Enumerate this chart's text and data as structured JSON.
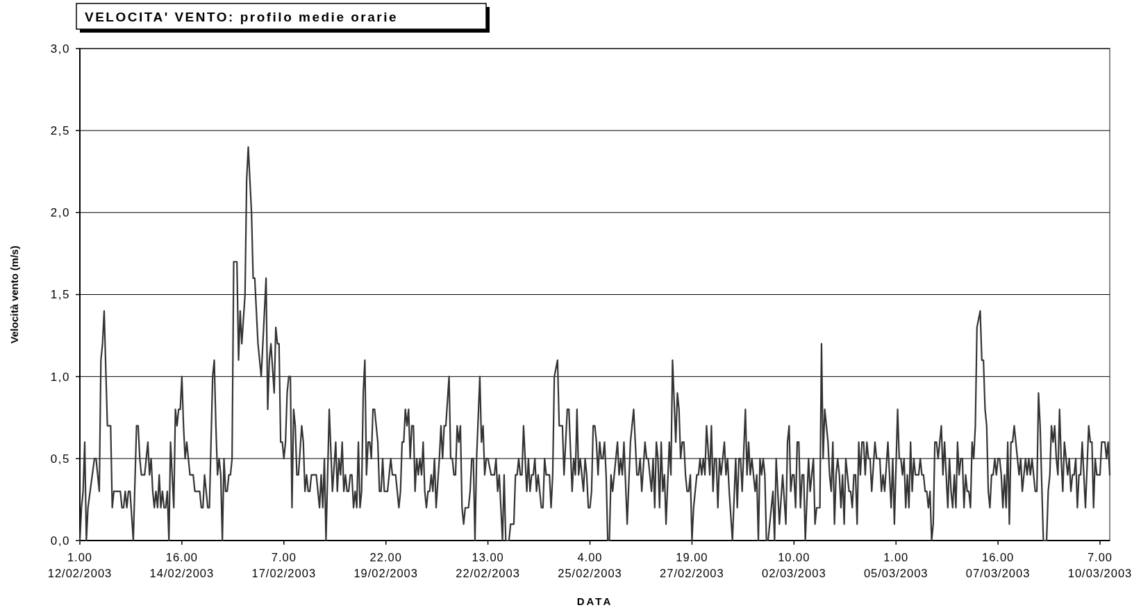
{
  "chart_data": {
    "type": "line",
    "title": "VELOCITA' VENTO: profilo medie orarie",
    "xlabel": "DATA",
    "ylabel": "Velocità vento (m/s)",
    "xlim": [
      "2003-02-12T01:00",
      "2003-03-10T13:00"
    ],
    "xticks": [
      {
        "value": "2003-02-12T01:00",
        "label": "1.00 12/02/2003"
      },
      {
        "value": "2003-02-14T16:00",
        "label": "16.00 14/02/2003"
      },
      {
        "value": "2003-02-17T07:00",
        "label": "7.00 17/02/2003"
      },
      {
        "value": "2003-02-19T22:00",
        "label": "22.00 19/02/2003"
      },
      {
        "value": "2003-02-22T13:00",
        "label": "13.00 22/02/2003"
      },
      {
        "value": "2003-02-25T04:00",
        "label": "4.00 25/02/2003"
      },
      {
        "value": "2003-02-27T19:00",
        "label": "19.00 27/02/2003"
      },
      {
        "value": "2003-03-02T10:00",
        "label": "10.00 02/03/2003"
      },
      {
        "value": "2003-03-05T01:00",
        "label": "1.00 05/03/2003"
      },
      {
        "value": "2003-03-07T16:00",
        "label": "16.00 07/03/2003"
      },
      {
        "value": "2003-03-10T07:00",
        "label": "7.00 10/03/2003"
      }
    ],
    "ylim": [
      0,
      3
    ],
    "yticks": [
      {
        "value": 0,
        "label": "0,0"
      },
      {
        "value": 0.5,
        "label": "0,5"
      },
      {
        "value": 1,
        "label": "1,0"
      },
      {
        "value": 1.5,
        "label": "1,5"
      },
      {
        "value": 2,
        "label": "2,0"
      },
      {
        "value": 2.5,
        "label": "2,5"
      },
      {
        "value": 3,
        "label": "3,0"
      }
    ],
    "grid": "y",
    "marker": "none",
    "line_style": "solid",
    "series": [
      {
        "color": "#333333",
        "x": [
          "2003-02-12T01:00",
          "2003-02-12T02:00",
          "2003-02-12T03:00",
          "2003-02-12T04:00",
          "2003-02-12T05:00",
          "2003-02-12T06:00",
          "2003-02-12T10:00",
          "2003-02-12T11:00",
          "2003-02-12T13:00",
          "2003-02-12T14:00",
          "2003-02-12T15:00",
          "2003-02-12T16:00",
          "2003-02-12T18:00",
          "2003-02-12T20:00",
          "2003-02-12T21:00",
          "2003-02-12T22:00",
          "2003-02-13T02:00",
          "2003-02-13T03:00",
          "2003-02-13T04:00",
          "2003-02-13T05:00",
          "2003-02-13T06:00",
          "2003-02-13T07:00",
          "2003-02-13T08:00",
          "2003-02-13T10:00",
          "2003-02-13T12:00",
          "2003-02-13T13:00",
          "2003-02-13T14:00",
          "2003-02-13T15:00",
          "2003-02-13T17:00",
          "2003-02-13T19:00",
          "2003-02-13T20:00",
          "2003-02-13T21:00",
          "2003-02-13T22:00",
          "2003-02-13T23:00",
          "2003-02-14T00:00",
          "2003-02-14T01:00",
          "2003-02-14T02:00",
          "2003-02-14T03:00",
          "2003-02-14T04:00",
          "2003-02-14T05:00",
          "2003-02-14T06:00",
          "2003-02-14T07:00",
          "2003-02-14T08:00",
          "2003-02-14T09:00",
          "2003-02-14T11:00",
          "2003-02-14T12:00",
          "2003-02-14T13:00",
          "2003-02-14T14:00",
          "2003-02-14T15:00",
          "2003-02-14T16:00",
          "2003-02-14T17:00",
          "2003-02-14T18:00",
          "2003-02-14T19:00",
          "2003-02-14T21:00",
          "2003-02-14T23:00",
          "2003-02-15T00:00",
          "2003-02-15T03:00",
          "2003-02-15T04:00",
          "2003-02-15T05:00",
          "2003-02-15T06:00",
          "2003-02-15T08:00",
          "2003-02-15T09:00",
          "2003-02-15T11:00",
          "2003-02-15T12:00",
          "2003-02-15T13:00",
          "2003-02-15T14:00",
          "2003-02-15T15:00",
          "2003-02-15T16:00",
          "2003-02-15T17:00",
          "2003-02-15T18:00",
          "2003-02-15T19:00",
          "2003-02-15T20:00",
          "2003-02-15T21:00",
          "2003-02-15T22:00",
          "2003-02-15T23:00",
          "2003-02-16T00:00",
          "2003-02-16T02:00",
          "2003-02-16T03:00",
          "2003-02-16T04:00",
          "2003-02-16T05:00",
          "2003-02-16T07:00",
          "2003-02-16T08:00",
          "2003-02-16T09:00",
          "2003-02-16T11:00",
          "2003-02-16T12:00",
          "2003-02-16T13:00",
          "2003-02-16T15:00",
          "2003-02-16T17:00",
          "2003-02-16T18:00",
          "2003-02-16T20:00",
          "2003-02-16T21:00",
          "2003-02-16T22:00",
          "2003-02-16T23:00",
          "2003-02-17T01:00",
          "2003-02-17T02:00",
          "2003-02-17T03:00",
          "2003-02-17T04:00",
          "2003-02-17T05:00",
          "2003-02-17T06:00",
          "2003-02-17T07:00",
          "2003-02-17T08:00",
          "2003-02-17T09:00",
          "2003-02-17T10:00",
          "2003-02-17T11:00",
          "2003-02-17T12:00",
          "2003-02-17T13:00",
          "2003-02-17T14:00",
          "2003-02-17T15:00",
          "2003-02-17T16:00",
          "2003-02-17T18:00",
          "2003-02-17T19:00",
          "2003-02-17T20:00",
          "2003-02-17T21:00",
          "2003-02-17T22:00",
          "2003-02-17T23:00",
          "2003-02-18T00:00",
          "2003-02-18T03:00",
          "2003-02-18T05:00",
          "2003-02-18T06:00",
          "2003-02-18T07:00",
          "2003-02-18T08:00",
          "2003-02-18T09:00",
          "2003-02-18T11:00",
          "2003-02-18T13:00",
          "2003-02-18T15:00",
          "2003-02-18T16:00",
          "2003-02-18T17:00",
          "2003-02-18T18:00",
          "2003-02-18T19:00",
          "2003-02-18T20:00",
          "2003-02-18T21:00",
          "2003-02-18T22:00",
          "2003-02-18T23:00",
          "2003-02-19T00:00",
          "2003-02-19T01:00",
          "2003-02-19T02:00",
          "2003-02-19T03:00",
          "2003-02-19T04:00",
          "2003-02-19T05:00",
          "2003-02-19T06:00",
          "2003-02-19T07:00",
          "2003-02-19T08:00",
          "2003-02-19T09:00",
          "2003-02-19T10:00",
          "2003-02-19T11:00",
          "2003-02-19T12:00",
          "2003-02-19T13:00",
          "2003-02-19T14:00",
          "2003-02-19T15:00",
          "2003-02-19T17:00",
          "2003-02-19T18:00",
          "2003-02-19T19:00",
          "2003-02-19T20:00",
          "2003-02-19T21:00",
          "2003-02-19T23:00",
          "2003-02-20T01:00",
          "2003-02-20T02:00",
          "2003-02-20T04:00",
          "2003-02-20T06:00",
          "2003-02-20T07:00",
          "2003-02-20T08:00",
          "2003-02-20T09:00",
          "2003-02-20T10:00",
          "2003-02-20T11:00",
          "2003-02-20T12:00",
          "2003-02-20T13:00",
          "2003-02-20T14:00",
          "2003-02-20T15:00",
          "2003-02-20T16:00",
          "2003-02-20T17:00",
          "2003-02-20T18:00",
          "2003-02-20T19:00",
          "2003-02-20T20:00",
          "2003-02-20T21:00",
          "2003-02-20T22:00",
          "2003-02-20T23:00",
          "2003-02-21T00:00",
          "2003-02-21T01:00",
          "2003-02-21T02:00",
          "2003-02-21T03:00",
          "2003-02-21T04:00",
          "2003-02-21T05:00",
          "2003-02-21T07:00",
          "2003-02-21T08:00",
          "2003-02-21T09:00",
          "2003-02-21T10:00",
          "2003-02-21T11:00",
          "2003-02-21T13:00",
          "2003-02-21T14:00",
          "2003-02-21T15:00",
          "2003-02-21T16:00",
          "2003-02-21T17:00",
          "2003-02-21T18:00",
          "2003-02-21T19:00",
          "2003-02-21T20:00",
          "2003-02-21T21:00",
          "2003-02-21T22:00",
          "2003-02-21T23:00",
          "2003-02-22T01:00",
          "2003-02-22T02:00",
          "2003-02-22T03:00",
          "2003-02-22T04:00",
          "2003-02-22T05:00",
          "2003-02-22T06:00",
          "2003-02-22T08:00",
          "2003-02-22T09:00",
          "2003-02-22T10:00",
          "2003-02-22T11:00",
          "2003-02-22T12:00",
          "2003-02-22T13:00",
          "2003-02-22T15:00",
          "2003-02-22T17:00",
          "2003-02-22T18:00",
          "2003-02-22T19:00",
          "2003-02-22T20:00",
          "2003-02-22T22:00",
          "2003-02-22T23:00",
          "2003-02-23T00:00",
          "2003-02-23T02:00",
          "2003-02-23T03:00",
          "2003-02-23T05:00",
          "2003-02-23T06:00",
          "2003-02-23T07:00",
          "2003-02-23T08:00",
          "2003-02-23T09:00",
          "2003-02-23T10:00",
          "2003-02-23T11:00",
          "2003-02-23T12:00",
          "2003-02-23T13:00",
          "2003-02-23T14:00",
          "2003-02-23T15:00",
          "2003-02-23T16:00",
          "2003-02-23T17:00",
          "2003-02-23T18:00",
          "2003-02-23T19:00",
          "2003-02-23T20:00",
          "2003-02-23T22:00",
          "2003-02-23T23:00",
          "2003-02-24T00:00",
          "2003-02-24T01:00",
          "2003-02-24T03:00",
          "2003-02-24T04:00",
          "2003-02-24T05:00",
          "2003-02-24T06:00",
          "2003-02-24T08:00",
          "2003-02-24T09:00",
          "2003-02-24T11:00",
          "2003-02-24T12:00",
          "2003-02-24T14:00",
          "2003-02-24T15:00",
          "2003-02-24T17:00",
          "2003-02-24T18:00",
          "2003-02-24T19:00",
          "2003-02-24T20:00",
          "2003-02-24T21:00",
          "2003-02-24T22:00",
          "2003-02-24T23:00",
          "2003-02-25T00:00",
          "2003-02-25T01:00",
          "2003-02-25T02:00",
          "2003-02-25T03:00",
          "2003-02-25T04:00",
          "2003-02-25T05:00",
          "2003-02-25T06:00",
          "2003-02-25T07:00",
          "2003-02-25T08:00",
          "2003-02-25T09:00",
          "2003-02-25T10:00",
          "2003-02-25T11:00",
          "2003-02-25T12:00",
          "2003-02-25T13:00",
          "2003-02-25T14:00",
          "2003-02-25T15:00",
          "2003-02-25T16:00",
          "2003-02-25T17:00",
          "2003-02-25T18:00",
          "2003-02-25T21:00",
          "2003-02-25T22:00",
          "2003-02-25T23:00",
          "2003-02-26T00:00",
          "2003-02-26T01:00",
          "2003-02-26T03:00",
          "2003-02-26T05:00",
          "2003-02-26T07:00",
          "2003-02-26T09:00",
          "2003-02-26T10:00",
          "2003-02-26T11:00",
          "2003-02-26T12:00",
          "2003-02-26T14:00",
          "2003-02-26T15:00",
          "2003-02-26T16:00",
          "2003-02-26T18:00",
          "2003-02-26T19:00",
          "2003-02-26T20:00",
          "2003-02-26T21:00",
          "2003-02-26T22:00",
          "2003-02-26T23:00",
          "2003-02-27T00:00",
          "2003-02-27T01:00",
          "2003-02-27T02:00",
          "2003-02-27T03:00",
          "2003-02-27T05:00",
          "2003-02-27T06:00",
          "2003-02-27T07:00",
          "2003-02-27T09:00",
          "2003-02-27T10:00",
          "2003-02-27T11:00",
          "2003-02-27T12:00",
          "2003-02-27T13:00",
          "2003-02-27T14:00",
          "2003-02-27T15:00",
          "2003-02-27T16:00",
          "2003-02-27T17:00",
          "2003-02-27T18:00",
          "2003-02-27T19:00",
          "2003-02-27T20:00",
          "2003-02-27T22:00",
          "2003-02-27T23:00",
          "2003-02-28T00:00",
          "2003-02-28T01:00",
          "2003-02-28T02:00",
          "2003-02-28T03:00",
          "2003-02-28T04:00",
          "2003-02-28T06:00",
          "2003-02-28T07:00",
          "2003-02-28T08:00",
          "2003-02-28T09:00",
          "2003-02-28T10:00",
          "2003-02-28T11:00",
          "2003-02-28T12:00",
          "2003-02-28T13:00",
          "2003-02-28T15:00",
          "2003-02-28T16:00",
          "2003-02-28T17:00",
          "2003-02-28T18:00",
          "2003-02-28T20:00",
          "2003-02-28T22:00",
          "2003-02-28T23:00",
          "2003-03-01T00:00",
          "2003-03-01T01:00",
          "2003-03-01T02:00",
          "2003-03-01T04:00",
          "2003-03-01T05:00",
          "2003-03-01T06:00",
          "2003-03-01T07:00",
          "2003-03-01T08:00",
          "2003-03-01T10:00",
          "2003-03-01T11:00",
          "2003-03-01T12:00",
          "2003-03-01T13:00",
          "2003-03-01T14:00",
          "2003-03-01T15:00",
          "2003-03-01T16:00",
          "2003-03-01T17:00",
          "2003-03-01T18:00",
          "2003-03-01T21:00",
          "2003-03-01T22:00",
          "2003-03-01T23:00",
          "2003-03-02T01:00",
          "2003-03-02T03:00",
          "2003-03-02T05:00",
          "2003-03-02T06:00",
          "2003-03-02T07:00",
          "2003-03-02T08:00",
          "2003-03-02T09:00",
          "2003-03-02T10:00",
          "2003-03-02T11:00",
          "2003-03-02T12:00",
          "2003-03-02T13:00",
          "2003-03-02T14:00",
          "2003-03-02T15:00",
          "2003-03-02T16:00",
          "2003-03-02T17:00",
          "2003-03-02T19:00",
          "2003-03-02T20:00",
          "2003-03-02T22:00",
          "2003-03-02T23:00",
          "2003-03-03T00:00",
          "2003-03-03T02:00",
          "2003-03-03T03:00",
          "2003-03-03T04:00",
          "2003-03-03T05:00",
          "2003-03-03T07:00",
          "2003-03-03T08:00",
          "2003-03-03T09:00",
          "2003-03-03T10:00",
          "2003-03-03T11:00",
          "2003-03-03T12:00",
          "2003-03-03T13:00",
          "2003-03-03T14:00",
          "2003-03-03T15:00",
          "2003-03-03T16:00",
          "2003-03-03T17:00",
          "2003-03-03T18:00",
          "2003-03-03T20:00",
          "2003-03-03T21:00",
          "2003-03-03T22:00",
          "2003-03-03T23:00",
          "2003-03-04T00:00",
          "2003-03-04T01:00",
          "2003-03-04T02:00",
          "2003-03-04T03:00",
          "2003-03-04T04:00",
          "2003-03-04T05:00",
          "2003-03-04T06:00",
          "2003-03-04T07:00",
          "2003-03-04T08:00",
          "2003-03-04T09:00",
          "2003-03-04T10:00",
          "2003-03-04T12:00",
          "2003-03-04T13:00",
          "2003-03-04T15:00",
          "2003-03-04T16:00",
          "2003-03-04T17:00",
          "2003-03-04T18:00",
          "2003-03-04T20:00",
          "2003-03-04T22:00",
          "2003-03-04T23:00",
          "2003-03-05T00:00",
          "2003-03-05T02:00",
          "2003-03-05T03:00",
          "2003-03-05T04:00",
          "2003-03-05T05:00",
          "2003-03-05T06:00",
          "2003-03-05T07:00",
          "2003-03-05T08:00",
          "2003-03-05T09:00",
          "2003-03-05T10:00",
          "2003-03-05T11:00",
          "2003-03-05T12:00",
          "2003-03-05T13:00",
          "2003-03-05T15:00",
          "2003-03-05T16:00",
          "2003-03-05T17:00",
          "2003-03-05T18:00",
          "2003-03-05T19:00",
          "2003-03-05T20:00",
          "2003-03-05T21:00",
          "2003-03-05T22:00",
          "2003-03-05T23:00",
          "2003-03-06T00:00",
          "2003-03-06T01:00",
          "2003-03-06T02:00",
          "2003-03-06T03:00",
          "2003-03-06T05:00",
          "2003-03-06T06:00",
          "2003-03-06T07:00",
          "2003-03-06T09:00",
          "2003-03-06T10:00",
          "2003-03-06T11:00",
          "2003-03-06T12:00",
          "2003-03-06T13:00",
          "2003-03-06T14:00",
          "2003-03-06T15:00",
          "2003-03-06T16:00",
          "2003-03-06T17:00",
          "2003-03-06T18:00",
          "2003-03-06T19:00",
          "2003-03-06T20:00",
          "2003-03-06T21:00",
          "2003-03-06T22:00",
          "2003-03-06T23:00",
          "2003-03-07T00:00",
          "2003-03-07T01:00",
          "2003-03-07T02:00",
          "2003-03-07T03:00",
          "2003-03-07T05:00",
          "2003-03-07T06:00",
          "2003-03-07T07:00",
          "2003-03-07T08:00",
          "2003-03-07T09:00",
          "2003-03-07T10:00",
          "2003-03-07T11:00",
          "2003-03-07T12:00",
          "2003-03-07T13:00",
          "2003-03-07T14:00",
          "2003-03-07T15:00",
          "2003-03-07T16:00",
          "2003-03-07T17:00",
          "2003-03-07T18:00",
          "2003-03-07T19:00",
          "2003-03-07T20:00",
          "2003-03-07T21:00",
          "2003-03-07T22:00",
          "2003-03-07T23:00",
          "2003-03-08T00:00",
          "2003-03-08T01:00",
          "2003-03-08T02:00",
          "2003-03-08T04:00",
          "2003-03-08T05:00",
          "2003-03-08T06:00",
          "2003-03-08T07:00",
          "2003-03-08T09:00",
          "2003-03-08T10:00",
          "2003-03-08T11:00",
          "2003-03-08T12:00",
          "2003-03-08T13:00",
          "2003-03-08T15:00",
          "2003-03-08T16:00",
          "2003-03-08T17:00",
          "2003-03-08T18:00",
          "2003-03-08T20:00",
          "2003-03-08T22:00",
          "2003-03-08T23:00",
          "2003-03-09T00:00",
          "2003-03-09T01:00",
          "2003-03-09T02:00",
          "2003-03-09T03:00",
          "2003-03-09T04:00",
          "2003-03-09T05:00",
          "2003-03-09T06:00",
          "2003-03-09T07:00",
          "2003-03-09T08:00",
          "2003-03-09T09:00",
          "2003-03-09T10:00",
          "2003-03-09T11:00",
          "2003-03-09T12:00",
          "2003-03-09T13:00",
          "2003-03-09T14:00",
          "2003-03-09T15:00",
          "2003-03-09T16:00",
          "2003-03-09T17:00",
          "2003-03-09T18:00",
          "2003-03-09T19:00",
          "2003-03-09T20:00",
          "2003-03-09T22:00",
          "2003-03-10T00:00",
          "2003-03-10T01:00",
          "2003-03-10T02:00",
          "2003-03-10T03:00",
          "2003-03-10T04:00",
          "2003-03-10T05:00",
          "2003-03-10T07:00",
          "2003-03-10T08:00",
          "2003-03-10T10:00",
          "2003-03-10T11:00",
          "2003-03-10T12:00",
          "2003-03-10T13:00"
        ],
        "values": [
          0,
          0.2,
          0.3,
          0.6,
          0,
          0.2,
          0.5,
          0.5,
          0.3,
          1.1,
          1.2,
          1.4,
          0.7,
          0.7,
          0.2,
          0.3,
          0.3,
          0.2,
          0.2,
          0.3,
          0.2,
          0.3,
          0.3,
          0,
          0.7,
          0.7,
          0.5,
          0.4,
          0.4,
          0.6,
          0.4,
          0.5,
          0.3,
          0.2,
          0.3,
          0.2,
          0.4,
          0.2,
          0.3,
          0.2,
          0.2,
          0.3,
          0,
          0.6,
          0.2,
          0.8,
          0.7,
          0.8,
          0.8,
          1.0,
          0.7,
          0.5,
          0.6,
          0.4,
          0.4,
          0.3,
          0.3,
          0.2,
          0.2,
          0.4,
          0.2,
          0.2,
          1.0,
          1.1,
          0.7,
          0.4,
          0.5,
          0.4,
          0,
          0.5,
          0.3,
          0.3,
          0.4,
          0.4,
          0.5,
          1.7,
          1.7,
          1.1,
          1.4,
          1.2,
          1.5,
          2.2,
          2.4,
          2.0,
          1.6,
          1.6,
          1.2,
          1.0,
          1.2,
          1.6,
          0.8,
          1.1,
          1.2,
          0.9,
          1.3,
          1.2,
          1.2,
          0.6,
          0.6,
          0.5,
          0.6,
          0.9,
          1.0,
          1.0,
          0.2,
          0.8,
          0.7,
          0.4,
          0.4,
          0.7,
          0.6,
          0.3,
          0.4,
          0.3,
          0.3,
          0.4,
          0.4,
          0.2,
          0.4,
          0.2,
          0.5,
          0,
          0.8,
          0.3,
          0.6,
          0.3,
          0.5,
          0.4,
          0.6,
          0.3,
          0.4,
          0.3,
          0.3,
          0.4,
          0.4,
          0.2,
          0.3,
          0.2,
          0.6,
          0.2,
          0.3,
          0.9,
          1.1,
          0.4,
          0.6,
          0.6,
          0.5,
          0.8,
          0.8,
          0.6,
          0.3,
          0.3,
          0.5,
          0.3,
          0.3,
          0.5,
          0.4,
          0.4,
          0.2,
          0.3,
          0.6,
          0.6,
          0.8,
          0.7,
          0.8,
          0.5,
          0.7,
          0.7,
          0.3,
          0.5,
          0.4,
          0.5,
          0.4,
          0.6,
          0.3,
          0.2,
          0.3,
          0.3,
          0.4,
          0.3,
          0.5,
          0.2,
          0.5,
          0.7,
          0.5,
          0.7,
          0.7,
          1.0,
          0.5,
          0.5,
          0.4,
          0.4,
          0.7,
          0.6,
          0.7,
          0.2,
          0.1,
          0.2,
          0.2,
          0.3,
          0.5,
          0.5,
          0,
          0.5,
          1.0,
          0.6,
          0.7,
          0.4,
          0.5,
          0.5,
          0.4,
          0.4,
          0.5,
          0.3,
          0.4,
          0,
          0.4,
          0,
          0,
          0.1,
          0.1,
          0.4,
          0.4,
          0.5,
          0.4,
          0.4,
          0.7,
          0.5,
          0.3,
          0.5,
          0.3,
          0.4,
          0.4,
          0.5,
          0.3,
          0.4,
          0.2,
          0.2,
          0.5,
          0.4,
          0.4,
          0.2,
          0.4,
          1.0,
          1.1,
          0.7,
          0.7,
          0.4,
          0.8,
          0.8,
          0.3,
          0.5,
          0.4,
          0.8,
          0.4,
          0.5,
          0.4,
          0.3,
          0.5,
          0.4,
          0.2,
          0.2,
          0.3,
          0.7,
          0.7,
          0.6,
          0.4,
          0.6,
          0.5,
          0.5,
          0.6,
          0.4,
          0,
          0,
          0.4,
          0.3,
          0.6,
          0.4,
          0.5,
          0.4,
          0.6,
          0.1,
          0.6,
          0.8,
          0.4,
          0.4,
          0.5,
          0.3,
          0.6,
          0.5,
          0.5,
          0.3,
          0.5,
          0.2,
          0.6,
          0.5,
          0.2,
          0.6,
          0.3,
          0.4,
          0.1,
          0.6,
          0.4,
          1.1,
          0.6,
          0.9,
          0.8,
          0.5,
          0.6,
          0.6,
          0.4,
          0.3,
          0.3,
          0.4,
          0,
          0.2,
          0.4,
          0.4,
          0.5,
          0.4,
          0.5,
          0.4,
          0.7,
          0.4,
          0.7,
          0.3,
          0.5,
          0.5,
          0.2,
          0.5,
          0.4,
          0.6,
          0.4,
          0.5,
          0.3,
          0,
          0.5,
          0.2,
          0.5,
          0.5,
          0.3,
          0.8,
          0.4,
          0.6,
          0.4,
          0.5,
          0.3,
          0.4,
          0,
          0.5,
          0.4,
          0.5,
          0.4,
          0,
          0,
          0.3,
          0,
          0.5,
          0.1,
          0.4,
          0.1,
          0.6,
          0.7,
          0.3,
          0.4,
          0.4,
          0.2,
          0.6,
          0.6,
          0.2,
          0.4,
          0.4,
          0,
          0.5,
          0.3,
          0.5,
          0.1,
          0.2,
          0.2,
          1.2,
          0.5,
          0.8,
          0.6,
          0.4,
          0.3,
          0.6,
          0.1,
          0.4,
          0.5,
          0.4,
          0.2,
          0.4,
          0.1,
          0.5,
          0.3,
          0.3,
          0.2,
          0.4,
          0.4,
          0.1,
          0.6,
          0.4,
          0.6,
          0.6,
          0.4,
          0.6,
          0.5,
          0.5,
          0.3,
          0.6,
          0.5,
          0.5,
          0.3,
          0.4,
          0.3,
          0.6,
          0.2,
          0.5,
          0.1,
          0.8,
          0.5,
          0.5,
          0.4,
          0.5,
          0.2,
          0.4,
          0.2,
          0.6,
          0.3,
          0.5,
          0.4,
          0.4,
          0.5,
          0.4,
          0.4,
          0.3,
          0.3,
          0.2,
          0.3,
          0,
          0.1,
          0.6,
          0.6,
          0.5,
          0.7,
          0.4,
          0.6,
          0.2,
          0.5,
          0.3,
          0.2,
          0.4,
          0.2,
          0.6,
          0.4,
          0.5,
          0.5,
          0.2,
          0.4,
          0.3,
          0.3,
          0.2,
          0.6,
          0.5,
          0.7,
          1.3,
          1.4,
          1.1,
          1.1,
          0.8,
          0.7,
          0.3,
          0.2,
          0.4,
          0.4,
          0.5,
          0.4,
          0.5,
          0.5,
          0.4,
          0.2,
          0.4,
          0.2,
          0.6,
          0.1,
          0.6,
          0.6,
          0.7,
          0.5,
          0.4,
          0.5,
          0.3,
          0.5,
          0.4,
          0.5,
          0.4,
          0.5,
          0.3,
          0.3,
          0.9,
          0.7,
          0,
          0,
          0.3,
          0.4,
          0.7,
          0.6,
          0.7,
          0.5,
          0.4,
          0.8,
          0.5,
          0.3,
          0.6,
          0.5,
          0.4,
          0.5,
          0.3,
          0.4,
          0.4,
          0.5,
          0.2,
          0.4,
          0.4,
          0.6,
          0.2,
          0.7,
          0.6,
          0.6,
          0.2,
          0.5,
          0.4,
          0.4,
          0.6,
          0.6,
          0.5,
          0.6,
          0.4
        ]
      }
    ]
  }
}
